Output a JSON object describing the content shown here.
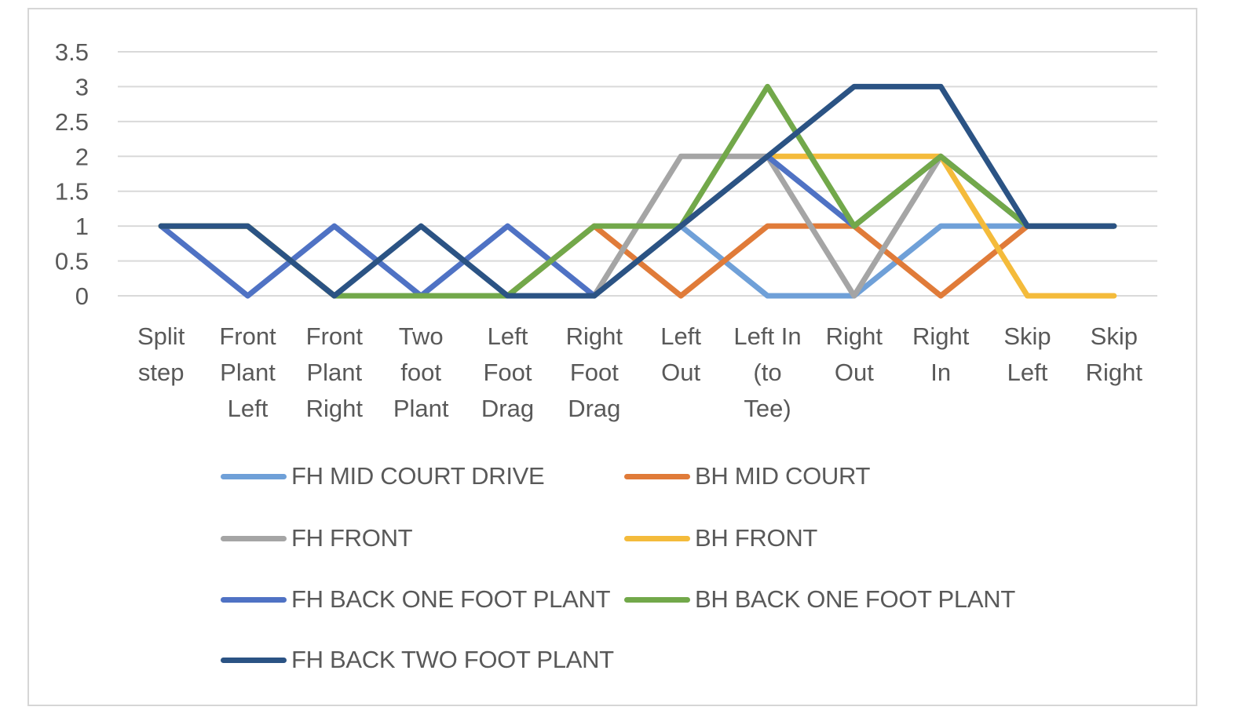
{
  "chart_data": {
    "type": "line",
    "title": "",
    "xlabel": "",
    "ylabel": "",
    "ylim": [
      0,
      3.5
    ],
    "yticks": [
      "0",
      "0.5",
      "1",
      "1.5",
      "2",
      "2.5",
      "3",
      "3.5"
    ],
    "grid": true,
    "legend_position": "bottom",
    "categories": [
      [
        "Split",
        "step"
      ],
      [
        "Front",
        "Plant",
        "Left"
      ],
      [
        "Front",
        "Plant",
        "Right"
      ],
      [
        "Two",
        "foot",
        "Plant"
      ],
      [
        "Left",
        "Foot",
        "Drag"
      ],
      [
        "Right",
        "Foot",
        "Drag"
      ],
      [
        "Left",
        "Out"
      ],
      [
        "Left In",
        "(to",
        "Tee)"
      ],
      [
        "Right",
        "Out"
      ],
      [
        "Right",
        "In"
      ],
      [
        "Skip",
        "Left"
      ],
      [
        "Skip",
        "Right"
      ]
    ],
    "series": [
      {
        "name": "FH MID COURT DRIVE",
        "color": "#6fa0d8",
        "values": [
          1,
          1,
          0,
          0,
          0,
          0,
          1,
          0,
          0,
          1,
          1,
          1
        ]
      },
      {
        "name": "BH MID COURT",
        "color": "#e07b39",
        "values": [
          1,
          1,
          0,
          0,
          0,
          1,
          0,
          1,
          1,
          0,
          1,
          1
        ]
      },
      {
        "name": "FH FRONT",
        "color": "#a5a5a5",
        "values": [
          1,
          1,
          0,
          0,
          0,
          0,
          2,
          2,
          0,
          2,
          1,
          1
        ]
      },
      {
        "name": "BH FRONT",
        "color": "#f4bb3b",
        "values": [
          1,
          1,
          0,
          0,
          0,
          0,
          1,
          2,
          2,
          2,
          0,
          0
        ]
      },
      {
        "name": "FH BACK ONE FOOT PLANT",
        "color": "#4f72c4",
        "values": [
          1,
          0,
          1,
          0,
          1,
          0,
          1,
          2,
          1,
          2,
          1,
          1
        ]
      },
      {
        "name": "BH BACK ONE FOOT PLANT",
        "color": "#72a84a",
        "values": [
          1,
          1,
          0,
          0,
          0,
          1,
          1,
          3,
          1,
          2,
          1,
          1
        ]
      },
      {
        "name": "FH BACK TWO FOOT PLANT",
        "color": "#2b5384",
        "values": [
          1,
          1,
          0,
          1,
          0,
          0,
          1,
          2,
          3,
          3,
          1,
          1
        ]
      }
    ]
  }
}
